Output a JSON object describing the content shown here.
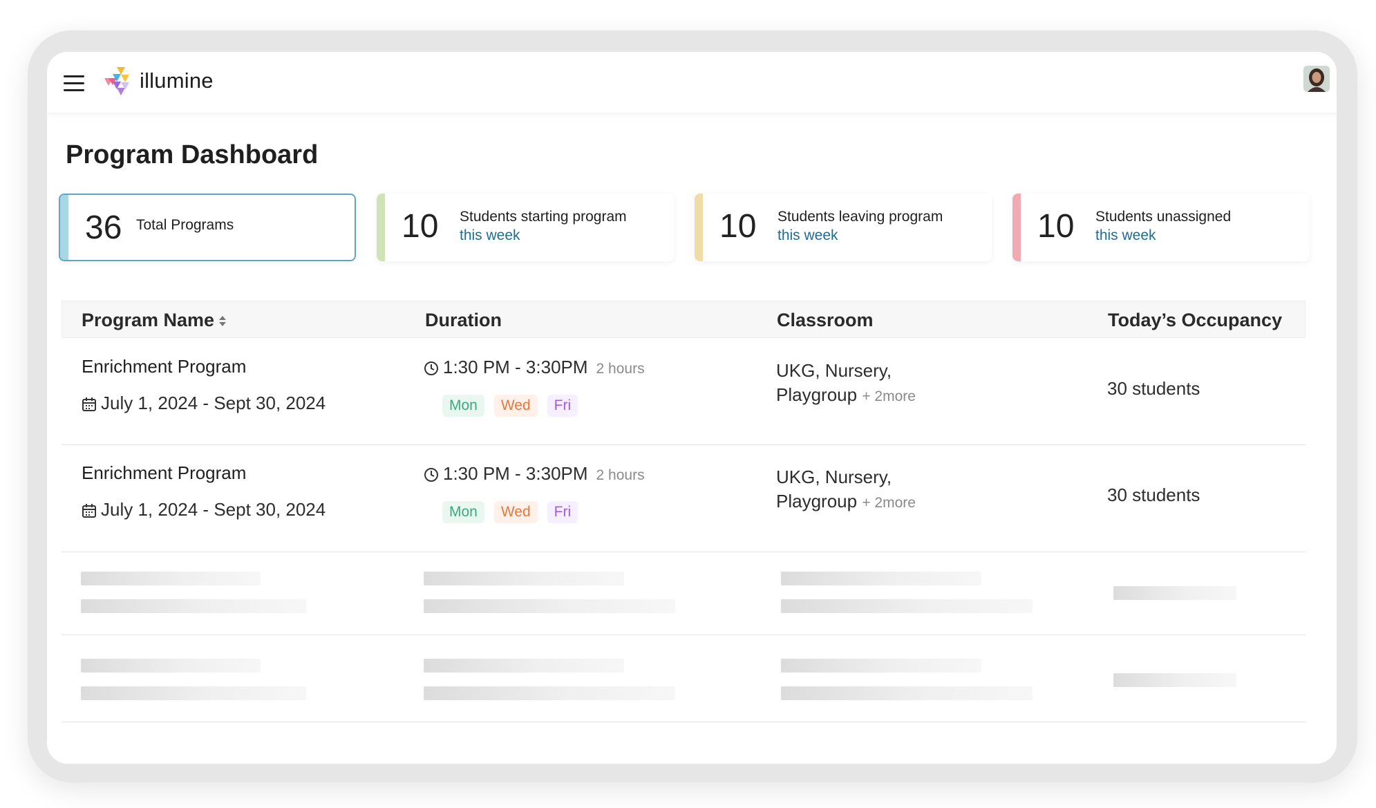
{
  "app": {
    "brand": "illumine"
  },
  "page": {
    "title": "Program Dashboard"
  },
  "stats": [
    {
      "value": "36",
      "label": "Total Programs",
      "sub": "",
      "accent": "#a9d6e3"
    },
    {
      "value": "10",
      "label": "Students starting program",
      "sub": "this week",
      "accent": "#cfe3b8"
    },
    {
      "value": "10",
      "label": "Students leaving program",
      "sub": "this week",
      "accent": "#f2dca6"
    },
    {
      "value": "10",
      "label": "Students unassigned",
      "sub": "this week",
      "accent": "#f1aab2"
    }
  ],
  "table": {
    "headers": {
      "program_name": "Program Name",
      "duration": "Duration",
      "classroom": "Classroom",
      "occupancy": "Today’s Occupancy"
    },
    "rows": [
      {
        "name": "Enrichment Program",
        "dates": "July 1, 2024 - Sept 30, 2024",
        "time": "1:30 PM - 3:30PM",
        "hours": "2 hours",
        "days": [
          "Mon",
          "Wed",
          "Fri"
        ],
        "classroom_line1": "UKG, Nursery,",
        "classroom_line2": "Playgroup",
        "classroom_more": "+ 2more",
        "occupancy": "30 students"
      },
      {
        "name": "Enrichment Program",
        "dates": "July 1, 2024 - Sept 30, 2024",
        "time": "1:30 PM - 3:30PM",
        "hours": "2 hours",
        "days": [
          "Mon",
          "Wed",
          "Fri"
        ],
        "classroom_line1": "UKG, Nursery,",
        "classroom_line2": "Playgroup",
        "classroom_more": "+ 2more",
        "occupancy": "30 students"
      }
    ]
  },
  "day_colors": {
    "Mon": {
      "bg": "#eaf7f1",
      "fg": "#3aaa7e"
    },
    "Wed": {
      "bg": "#fdf1ea",
      "fg": "#e8773e"
    },
    "Fri": {
      "bg": "#f6efff",
      "fg": "#a35bd9"
    }
  },
  "icons": {
    "menu": "hamburger-icon",
    "logo": "illumine-logo",
    "clock": "clock-icon",
    "calendar": "calendar-icon",
    "sort": "sort-icon"
  }
}
